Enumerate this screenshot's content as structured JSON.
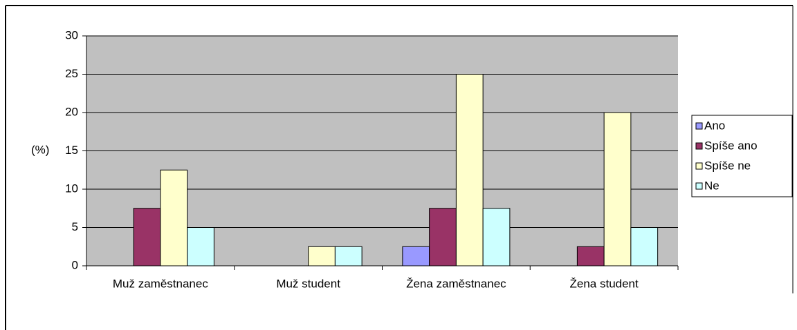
{
  "chart_data": {
    "type": "bar",
    "y_label": "(%)",
    "categories": [
      "Muž zaměstnanec",
      "Muž student",
      "Žena zaměstnanec",
      "Žena student"
    ],
    "series": [
      {
        "name": "Ano",
        "color": "#9999ff",
        "values": [
          0,
          0,
          2.5,
          0
        ]
      },
      {
        "name": "Spíše ano",
        "color": "#993366",
        "values": [
          7.5,
          0,
          7.5,
          2.5
        ]
      },
      {
        "name": "Spíše ne",
        "color": "#ffffcc",
        "values": [
          12.5,
          2.5,
          25,
          20
        ]
      },
      {
        "name": "Ne",
        "color": "#ccffff",
        "values": [
          5,
          2.5,
          7.5,
          5
        ]
      }
    ],
    "ylim": [
      0,
      30
    ],
    "yticks": [
      0,
      5,
      10,
      15,
      20,
      25,
      30
    ],
    "grid": true,
    "legend": "right"
  }
}
